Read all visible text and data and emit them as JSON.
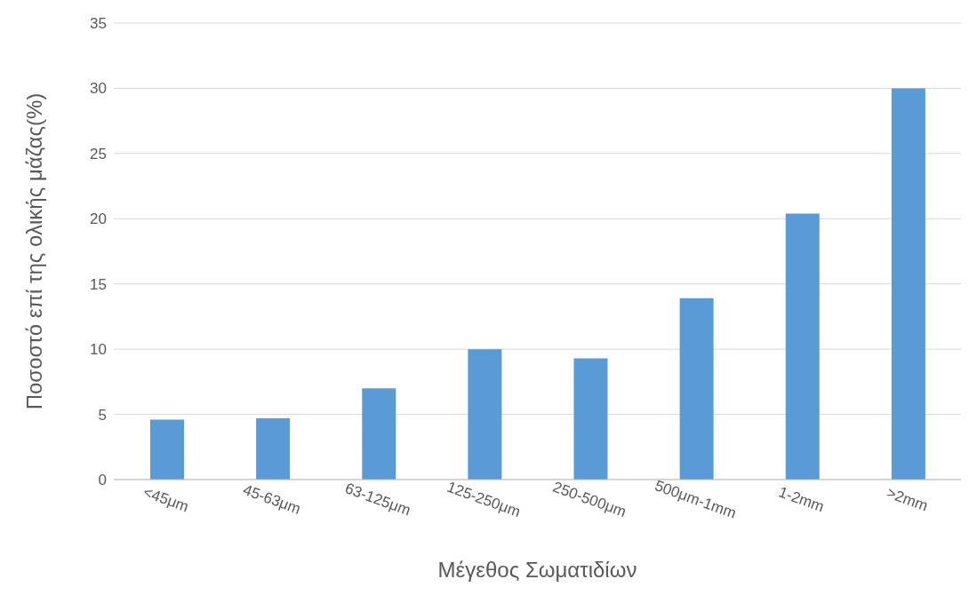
{
  "chart_data": {
    "type": "bar",
    "xlabel": "Μέγεθος Σωματιδίων",
    "ylabel": "Ποσοστό επί της ολικής μάζας(%)",
    "categories": [
      "<45μm",
      "45-63μm",
      "63-125μm",
      "125-250μm",
      "250-500μm",
      "500μm-1mm",
      "1-2mm",
      ">2mm"
    ],
    "values": [
      4.6,
      4.7,
      7.0,
      10.0,
      9.3,
      13.9,
      20.4,
      30.0
    ],
    "color": "#5b9bd5",
    "ylim": [
      0,
      35
    ],
    "yticks": [
      0,
      5,
      10,
      15,
      20,
      25,
      30,
      35
    ],
    "grid": "y"
  }
}
